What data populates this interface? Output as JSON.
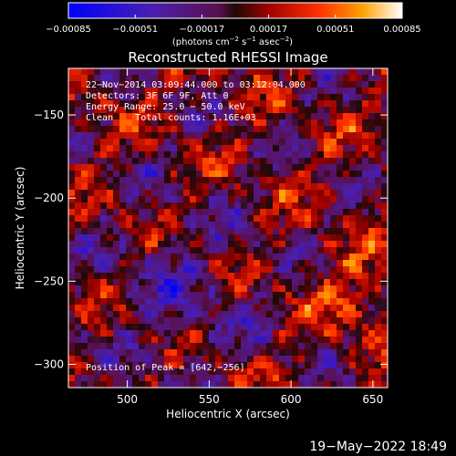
{
  "chart_data": {
    "type": "heatmap",
    "title": "Reconstructed RHESSI Image",
    "xlabel": "Heliocentric X (arcsec)",
    "ylabel": "Heliocentric Y (arcsec)",
    "xlim": [
      464,
      659
    ],
    "ylim": [
      -314,
      -122
    ],
    "x_ticks": [
      500,
      550,
      600,
      650
    ],
    "x_tick_labels": [
      "500",
      "550",
      "600",
      "650"
    ],
    "y_ticks": [
      -150,
      -200,
      -250,
      -300
    ],
    "y_tick_labels": [
      "−150",
      "−200",
      "−250",
      "−300"
    ],
    "colorbar": {
      "range": [
        -0.00085,
        0.00085
      ],
      "ticks": [
        -0.00085,
        -0.00051,
        -0.00017,
        0.00017,
        0.00051,
        0.00085
      ],
      "tick_labels": [
        "−0.00085",
        "−0.00051",
        "−0.00017",
        "0.00017",
        "0.00051",
        "0.00085"
      ],
      "units_text": "(photons cm",
      "units_exp1": "−2",
      "units_mid1": " s",
      "units_exp2": "−1",
      "units_mid2": " asec",
      "units_exp3": "−2",
      "units_end": ")"
    },
    "annotations": [
      "22−Nov−2014 03:09:44.000 to 03:12:04.000",
      "Detectors: 3F 6F 9F, Att 0",
      "Energy Range: 25.0 − 50.0 keV",
      "Clean    Total counts: 1.16E+03"
    ],
    "peak_label": "Position of Peak = [642,−256]",
    "peak": {
      "x": 642,
      "y": -256
    },
    "grid": false
  },
  "footer": {
    "timestamp": "19−May−2022 18:49"
  }
}
